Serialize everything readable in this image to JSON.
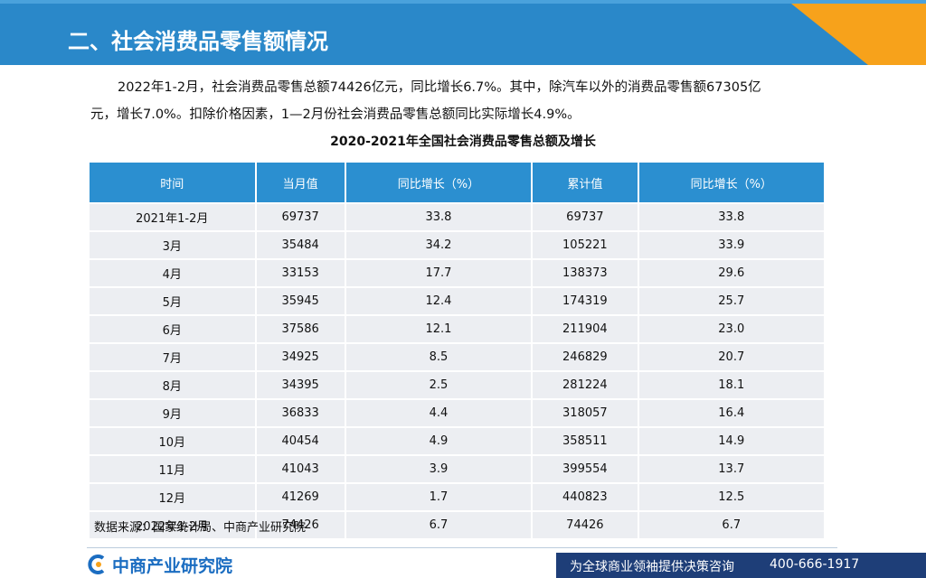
{
  "header": {
    "title": "二、社会消费品零售额情况"
  },
  "paragraph": [
    "2022年1-2月，社会消费品零售总额74426亿元，同比增长6.7%。其中，除汽车以外的消费品零售额67305亿",
    "元，增长7.0%。扣除价格因素，1—2月份社会消费品零售总额同比实际增长4.9%。"
  ],
  "table": {
    "title": "2020-2021年全国社会消费品零售总额及增长",
    "columns": [
      "时间",
      "当月值",
      "同比增长（%）",
      "累计值",
      "同比增长（%）"
    ],
    "rows": [
      [
        "2021年1-2月",
        "69737",
        "33.8",
        "69737",
        "33.8"
      ],
      [
        "3月",
        "35484",
        "34.2",
        "105221",
        "33.9"
      ],
      [
        "4月",
        "33153",
        "17.7",
        "138373",
        "29.6"
      ],
      [
        "5月",
        "35945",
        "12.4",
        "174319",
        "25.7"
      ],
      [
        "6月",
        "37586",
        "12.1",
        "211904",
        "23.0"
      ],
      [
        "7月",
        "34925",
        "8.5",
        "246829",
        "20.7"
      ],
      [
        "8月",
        "34395",
        "2.5",
        "281224",
        "18.1"
      ],
      [
        "9月",
        "36833",
        "4.4",
        "318057",
        "16.4"
      ],
      [
        "10月",
        "40454",
        "4.9",
        "358511",
        "14.9"
      ],
      [
        "11月",
        "41043",
        "3.9",
        "399554",
        "13.7"
      ],
      [
        "12月",
        "41269",
        "1.7",
        "440823",
        "12.5"
      ],
      [
        "2022年1-2月",
        "74426",
        "6.7",
        "74426",
        "6.7"
      ]
    ]
  },
  "source": "数据来源：国家统计局、中商产业研究院",
  "footer": {
    "logo": "中商产业研究院",
    "slogan": "为全球商业领袖提供决策咨询",
    "phone": "400-666-1917"
  }
}
